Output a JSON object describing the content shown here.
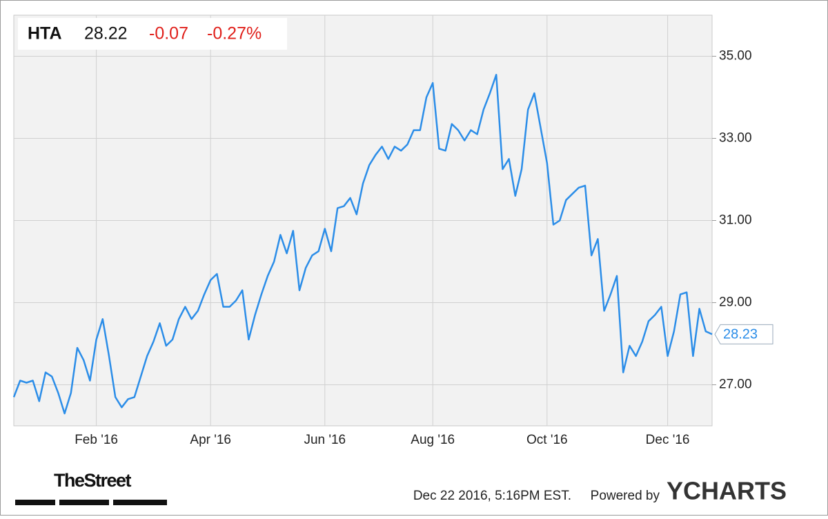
{
  "chart_data": {
    "type": "line",
    "ticker": "HTA",
    "price": 28.22,
    "change": -0.07,
    "change_pct": "-0.27%",
    "timestamp": "Dec 22 2016, 5:16PM EST.",
    "powered_by": "Powered by",
    "brand": "YCHARTS",
    "publisher": "TheStreet",
    "categories": [
      null,
      null,
      null,
      null,
      null,
      null,
      null,
      null,
      null,
      null,
      null,
      null,
      null,
      "Feb '16",
      null,
      null,
      null,
      null,
      null,
      null,
      null,
      null,
      null,
      null,
      null,
      null,
      null,
      null,
      null,
      null,
      null,
      "Apr '16",
      null,
      null,
      null,
      null,
      null,
      null,
      null,
      null,
      null,
      null,
      null,
      null,
      null,
      null,
      null,
      null,
      null,
      "Jun '16",
      null,
      null,
      null,
      null,
      null,
      null,
      null,
      null,
      null,
      null,
      null,
      null,
      null,
      null,
      null,
      null,
      "Aug '16",
      null,
      null,
      null,
      null,
      null,
      null,
      null,
      null,
      null,
      null,
      null,
      null,
      null,
      null,
      null,
      null,
      null,
      "Oct '16",
      null,
      null,
      null,
      null,
      null,
      null,
      null,
      null,
      null,
      null,
      null,
      null,
      null,
      null,
      null,
      null,
      null,
      null,
      "Dec '16",
      null,
      null,
      null,
      null,
      null,
      null,
      null
    ],
    "series": [
      {
        "name": "HTA",
        "color": "#2b8de8",
        "values": [
          26.7,
          27.1,
          27.05,
          27.1,
          26.6,
          27.3,
          27.2,
          26.8,
          26.3,
          26.8,
          27.9,
          27.6,
          27.1,
          28.1,
          28.6,
          27.7,
          26.7,
          26.45,
          26.65,
          26.7,
          27.2,
          27.7,
          28.05,
          28.5,
          27.95,
          28.1,
          28.6,
          28.9,
          28.6,
          28.8,
          29.2,
          29.55,
          29.7,
          28.9,
          28.9,
          29.05,
          29.3,
          28.1,
          28.7,
          29.2,
          29.65,
          30.0,
          30.65,
          30.2,
          30.75,
          29.3,
          29.85,
          30.15,
          30.25,
          30.8,
          30.25,
          31.3,
          31.35,
          31.55,
          31.15,
          31.9,
          32.35,
          32.6,
          32.8,
          32.5,
          32.8,
          32.7,
          32.85,
          33.2,
          33.2,
          34.0,
          34.35,
          32.75,
          32.7,
          33.35,
          33.2,
          32.95,
          33.2,
          33.1,
          33.7,
          34.1,
          34.55,
          32.25,
          32.5,
          31.6,
          32.25,
          33.7,
          34.1,
          33.25,
          32.4,
          30.9,
          31.0,
          31.5,
          31.65,
          31.8,
          31.85,
          30.15,
          30.55,
          28.8,
          29.2,
          29.65,
          27.3,
          27.95,
          27.7,
          28.05,
          28.55,
          28.7,
          28.9,
          27.7,
          28.3,
          29.2,
          29.25,
          27.7,
          28.85,
          28.3,
          28.23
        ]
      }
    ],
    "ylim": [
      26,
      36
    ],
    "yticks": [
      {
        "value": 27,
        "label": "27.00"
      },
      {
        "value": 29,
        "label": "29.00"
      },
      {
        "value": 31,
        "label": "31.00"
      },
      {
        "value": 33,
        "label": "33.00"
      },
      {
        "value": 35,
        "label": "35.00"
      }
    ],
    "grid": true
  }
}
